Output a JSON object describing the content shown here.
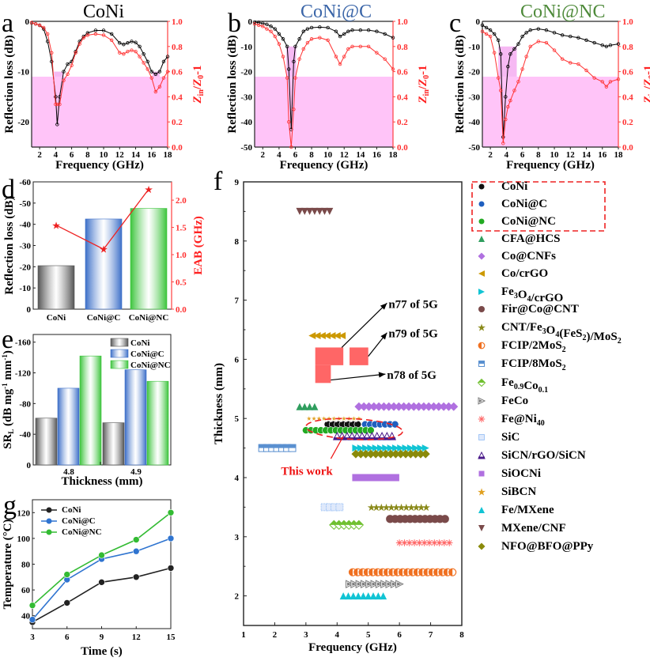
{
  "chart_data": [
    {
      "panel": "a",
      "type": "line",
      "title": "CoNi",
      "title_color": "#000000",
      "xlabel": "Frequency (GHz)",
      "ylabel": "Reflection loss (dB)",
      "y2label": "Zin/Z0-1",
      "xlim": [
        1,
        18
      ],
      "ylim": [
        -25,
        0
      ],
      "y2lim": [
        0,
        1.0
      ],
      "xticks": [
        "2",
        "4",
        "6",
        "8",
        "10",
        "12",
        "14",
        "16",
        "18"
      ],
      "yticks": [
        "0",
        "-10",
        "-20"
      ],
      "y2ticks": [
        "1.0",
        "0.8",
        "0.6",
        "0.4",
        "0.2",
        "0.0"
      ],
      "shade_y2_below": 0.56,
      "eab_bands": [
        [
          3.8,
          4.9
        ],
        [
          16.1,
          17.0
        ]
      ],
      "series": [
        {
          "name": "RL",
          "color": "#000000",
          "x": [
            1,
            1.5,
            2,
            2.5,
            3,
            3.5,
            4,
            4.2,
            4.5,
            5,
            5.5,
            6,
            6.5,
            7,
            7.5,
            8,
            9,
            10,
            11,
            12,
            12.5,
            13,
            13.5,
            14,
            14.5,
            15,
            15.5,
            16,
            16.5,
            17,
            17.5,
            18
          ],
          "y": [
            -0.3,
            -0.5,
            -0.8,
            -1.5,
            -4,
            -8,
            -15,
            -20.5,
            -15,
            -10,
            -8.5,
            -8,
            -6,
            -4,
            -3,
            -2.3,
            -1.8,
            -1.8,
            -2.5,
            -4.3,
            -4.6,
            -4.3,
            -4.0,
            -4.2,
            -5.0,
            -6.5,
            -8,
            -10,
            -10.5,
            -10,
            -8,
            -7
          ]
        },
        {
          "name": "|Zin/Z0-1|",
          "color": "#ff3333",
          "axis": "right",
          "x": [
            1,
            1.5,
            2,
            2.5,
            3,
            3.5,
            4,
            4.2,
            4.5,
            5,
            5.5,
            6,
            6.5,
            7,
            7.5,
            8,
            9,
            10,
            11,
            12,
            12.5,
            13,
            13.5,
            14,
            14.5,
            15,
            15.5,
            16,
            16.5,
            17,
            17.5,
            18
          ],
          "y": [
            0.99,
            0.98,
            0.97,
            0.95,
            0.9,
            0.75,
            0.34,
            0.34,
            0.34,
            0.53,
            0.58,
            0.65,
            0.75,
            0.82,
            0.87,
            0.89,
            0.9,
            0.89,
            0.85,
            0.75,
            0.74,
            0.76,
            0.77,
            0.76,
            0.72,
            0.67,
            0.62,
            0.55,
            0.44,
            0.48,
            0.55,
            0.6
          ]
        }
      ]
    },
    {
      "panel": "b",
      "type": "line",
      "title": "CoNi@C",
      "title_color": "#3a65a8",
      "xlabel": "Frequency (GHz)",
      "ylabel": "Reflection loss (dB)",
      "y2label": "Zin/Z0-1",
      "xlim": [
        1,
        18
      ],
      "ylim": [
        -50,
        0
      ],
      "y2lim": [
        0,
        1.0
      ],
      "xticks": [
        "2",
        "4",
        "6",
        "8",
        "10",
        "12",
        "14",
        "16",
        "18"
      ],
      "yticks": [
        "0",
        "-10",
        "-20",
        "-30",
        "-40",
        "-50"
      ],
      "y2ticks": [
        "1.0",
        "0.8",
        "0.6",
        "0.4",
        "0.2",
        "0.0"
      ],
      "shade_y2_below": 0.56,
      "eab_bands": [
        [
          4.9,
          6.1
        ]
      ],
      "series": [
        {
          "name": "RL",
          "color": "#000000",
          "x": [
            1,
            1.5,
            2,
            2.5,
            3,
            3.5,
            4,
            4.5,
            5,
            5.2,
            5.5,
            5.8,
            6,
            6.5,
            7,
            7.5,
            8,
            9,
            10,
            11,
            11.5,
            12,
            12.5,
            13,
            14,
            15,
            16,
            17,
            18
          ],
          "y": [
            -0.3,
            -0.5,
            -0.8,
            -1.2,
            -2,
            -3,
            -5,
            -7,
            -10,
            -19,
            -43,
            -16,
            -10,
            -7,
            -4,
            -3,
            -2.5,
            -2.3,
            -2.5,
            -4,
            -6,
            -5,
            -4,
            -3.5,
            -3.5,
            -3.5,
            -4,
            -5,
            -6.5
          ]
        },
        {
          "name": "|Zin/Z0-1|",
          "color": "#ff3333",
          "axis": "right",
          "x": [
            1,
            1.5,
            2,
            2.5,
            3,
            3.5,
            4,
            4.5,
            5,
            5.2,
            5.5,
            5.8,
            6,
            6.5,
            7,
            7.5,
            8,
            9,
            10,
            11,
            11.5,
            12,
            12.5,
            13,
            14,
            15,
            16,
            17,
            18
          ],
          "y": [
            0.98,
            0.97,
            0.96,
            0.94,
            0.92,
            0.88,
            0.82,
            0.72,
            0.55,
            0.2,
            0.0,
            0.3,
            0.55,
            0.7,
            0.78,
            0.83,
            0.86,
            0.87,
            0.85,
            0.72,
            0.66,
            0.72,
            0.78,
            0.8,
            0.8,
            0.8,
            0.75,
            0.7,
            0.62
          ]
        }
      ]
    },
    {
      "panel": "c",
      "type": "line",
      "title": "CoNi@NC",
      "title_color": "#4e8a3a",
      "xlabel": "Frequency (GHz)",
      "ylabel": "Reflection loss (dB)",
      "y2label": "Zin/Z0-1",
      "xlim": [
        1,
        18
      ],
      "ylim": [
        -50,
        0
      ],
      "y2lim": [
        0,
        1.0
      ],
      "xticks": [
        "2",
        "4",
        "6",
        "8",
        "10",
        "12",
        "14",
        "16",
        "18"
      ],
      "yticks": [
        "0",
        "-10",
        "-20",
        "-30",
        "-40",
        "-50"
      ],
      "y2ticks": [
        "1.0",
        "0.8",
        "0.6",
        "0.4",
        "0.2",
        "0.0"
      ],
      "shade_y2_below": 0.56,
      "eab_bands": [
        [
          3.0,
          5.3
        ]
      ],
      "series": [
        {
          "name": "RL",
          "color": "#000000",
          "x": [
            1,
            1.5,
            2,
            2.5,
            3,
            3.3,
            3.6,
            3.9,
            4.2,
            4.5,
            5,
            5.5,
            6,
            6.5,
            7,
            8,
            9,
            10,
            11,
            12,
            13,
            14,
            15,
            16,
            16.5,
            17,
            18
          ],
          "y": [
            -1.5,
            -2.5,
            -3.5,
            -5,
            -7.5,
            -13,
            -46,
            -30,
            -18,
            -13,
            -11,
            -9,
            -6,
            -4.5,
            -3.5,
            -3,
            -3.5,
            -4.5,
            -5.5,
            -6,
            -6.5,
            -7.5,
            -8.5,
            -9.5,
            -10,
            -9.5,
            -9
          ]
        },
        {
          "name": "|Zin/Z0-1|",
          "color": "#ff3333",
          "axis": "right",
          "x": [
            1,
            1.5,
            2,
            2.5,
            3,
            3.3,
            3.6,
            3.9,
            4.2,
            4.5,
            5,
            5.5,
            6,
            6.5,
            7,
            8,
            9,
            10,
            11,
            12,
            13,
            14,
            15,
            16,
            16.5,
            17,
            18
          ],
          "y": [
            0.92,
            0.9,
            0.88,
            0.75,
            0.55,
            0.45,
            0.03,
            0.22,
            0.32,
            0.37,
            0.45,
            0.52,
            0.62,
            0.72,
            0.8,
            0.84,
            0.83,
            0.77,
            0.7,
            0.67,
            0.66,
            0.61,
            0.55,
            0.52,
            0.48,
            0.52,
            0.54
          ]
        }
      ]
    },
    {
      "panel": "d",
      "type": "bar",
      "categories": [
        "CoNi",
        "CoNi@C",
        "CoNi@NC"
      ],
      "values": [
        -20.5,
        -42.5,
        -47.5
      ],
      "bar_colors": [
        "#555555",
        "#3c6fc8",
        "#3cc43c"
      ],
      "ylabel": "Reflection loss (dB)",
      "y2label": "EAB (GHz)",
      "ylim": [
        0,
        -60
      ],
      "y2lim": [
        0,
        2.3
      ],
      "yticks": [
        "0",
        "-10",
        "-20",
        "-30",
        "-40",
        "-50",
        "-60"
      ],
      "y2ticks": [
        "0.0",
        "0.5",
        "1.0",
        "1.5",
        "2.0"
      ],
      "line_series": {
        "name": "EAB",
        "color": "#ee2222",
        "values": [
          1.54,
          1.1,
          2.2
        ]
      }
    },
    {
      "panel": "e",
      "type": "bar",
      "categories": [
        "4.8",
        "4.9"
      ],
      "series": [
        {
          "name": "CoNi",
          "color": "#555555",
          "values": [
            -61,
            -55
          ]
        },
        {
          "name": "CoNi@C",
          "color": "#3c6fc8",
          "values": [
            -100,
            -124
          ]
        },
        {
          "name": "CoNi@NC",
          "color": "#3cc43c",
          "values": [
            -142,
            -109
          ]
        }
      ],
      "xlabel": "Thickness (mm)",
      "ylabel": "SRL (dB mg-1 mm-1)",
      "ylim": [
        0,
        -170
      ],
      "yticks": [
        "0",
        "-40",
        "-80",
        "-120",
        "-160"
      ],
      "legend": "top-right"
    },
    {
      "panel": "f",
      "type": "scatter",
      "xlabel": "Frequency (GHz)",
      "ylabel": "Thickness (mm)",
      "xlim": [
        1,
        8
      ],
      "ylim": [
        1.5,
        9
      ],
      "xticks": [
        "1",
        "2",
        "3",
        "4",
        "5",
        "6",
        "7",
        "8"
      ],
      "yticks": [
        "2",
        "3",
        "4",
        "5",
        "6",
        "7",
        "8",
        "9"
      ],
      "series": [
        {
          "name": "CoNi",
          "color": "#111111",
          "marker": "circle",
          "thickness": 4.9,
          "freq_range": [
            3.7,
            4.8
          ]
        },
        {
          "name": "CoNi@C",
          "color": "#1f5fbf",
          "marker": "circle",
          "thickness": 4.9,
          "freq_range": [
            4.9,
            6.0
          ]
        },
        {
          "name": "CoNi@NC",
          "color": "#22aa22",
          "marker": "circle",
          "thickness": 4.8,
          "freq_range": [
            3.0,
            5.2
          ]
        },
        {
          "name": "CFA@HCS",
          "color": "#2f9e5e",
          "marker": "triangle-up",
          "thickness": 5.2,
          "freq_range": [
            2.8,
            3.3
          ]
        },
        {
          "name": "Co@CNFs",
          "color": "#b070e0",
          "marker": "diamond",
          "thickness": 5.2,
          "freq_range": [
            4.7,
            7.8
          ]
        },
        {
          "name": "Co/crGO",
          "color": "#cc9900",
          "marker": "triangle-left",
          "thickness": 6.4,
          "freq_range": [
            3.2,
            4.2
          ]
        },
        {
          "name": "Fe3O4/crGO",
          "color": "#11c4d4",
          "marker": "triangle-right",
          "thickness": 4.5,
          "freq_range": [
            4.6,
            6.9
          ]
        },
        {
          "name": "Fir@Co@CNT",
          "color": "#7a4a4a",
          "marker": "hexagon",
          "thickness": 3.3,
          "freq_range": [
            5.7,
            7.6
          ]
        },
        {
          "name": "CNT/Fe3O4(FeS2)/MoS2",
          "color": "#8a8a1a",
          "marker": "star",
          "thickness": 3.5,
          "freq_range": [
            5.1,
            6.9
          ]
        },
        {
          "name": "FCIP/2MoS2",
          "color": "#f07020",
          "marker": "half-circle",
          "thickness": 2.4,
          "freq_range": [
            4.5,
            7.8
          ]
        },
        {
          "name": "FCIP/8MoS2",
          "color": "#5a90d0",
          "marker": "half-square",
          "thickness": 4.5,
          "freq_range": [
            1.6,
            2.6
          ]
        },
        {
          "name": "Fe0.9Co0.1",
          "color": "#70c030",
          "marker": "half-diamond",
          "thickness": 3.2,
          "freq_range": [
            3.9,
            4.7
          ]
        },
        {
          "name": "FeCo",
          "color": "#777777",
          "marker": "half-triangle-right",
          "thickness": 2.2,
          "freq_range": [
            4.4,
            6.0
          ]
        },
        {
          "name": "Fe@Ni40",
          "color": "#ff6666",
          "marker": "asterisk",
          "thickness": 2.9,
          "freq_range": [
            6.0,
            7.7
          ]
        },
        {
          "name": "SiC",
          "color": "#5a9aef",
          "marker": "crosshatch",
          "thickness": 3.5,
          "freq_range": [
            3.6,
            4.2
          ]
        },
        {
          "name": "SiCN/rGO/SiCN",
          "color": "#4a1a8a",
          "marker": "half-triangle-up",
          "thickness": 4.7,
          "freq_range": [
            4.0,
            5.9
          ]
        },
        {
          "name": "SiOCNi",
          "color": "#b070e0",
          "marker": "square",
          "thickness": 4.0,
          "freq_range": [
            4.6,
            5.9
          ]
        },
        {
          "name": "SiBCN",
          "color": "#e0a020",
          "marker": "star-open",
          "thickness": 5.0,
          "freq_range": [
            3.1,
            4.7
          ]
        },
        {
          "name": "Fe/MXene",
          "color": "#11c4d4",
          "marker": "triangle-up",
          "thickness": 2.0,
          "freq_range": [
            4.2,
            5.5
          ]
        },
        {
          "name": "MXene/CNF",
          "color": "#7a4a4a",
          "marker": "triangle-down",
          "thickness": 8.5,
          "freq_range": [
            2.8,
            3.8
          ]
        },
        {
          "name": "NFO@BFO@PPy",
          "color": "#8a8a0a",
          "marker": "diamond",
          "thickness": 4.4,
          "freq_range": [
            4.6,
            6.9
          ]
        }
      ],
      "annotations": [
        {
          "text": "n77 of 5G",
          "band_freq": [
            3.3,
            4.2
          ],
          "band_thickness": [
            5.9,
            6.2
          ]
        },
        {
          "text": "n79 of 5G",
          "band_freq": [
            4.4,
            5.0
          ],
          "band_thickness": [
            5.9,
            6.2
          ]
        },
        {
          "text": "n78 of 5G",
          "band_freq": [
            3.3,
            3.8
          ],
          "band_thickness": [
            5.6,
            6.2
          ]
        },
        {
          "text": "This work",
          "color": "#ee1111"
        }
      ],
      "band_color": "#ff6666",
      "highlight_box_color": "#ee2222"
    },
    {
      "panel": "g",
      "type": "line",
      "xlabel": "Time (s)",
      "ylabel": "Temperature (°C)",
      "x": [
        3,
        6,
        9,
        12,
        15
      ],
      "xlim": [
        3,
        15
      ],
      "ylim": [
        30,
        130
      ],
      "xticks": [
        "3",
        "6",
        "9",
        "12",
        "15"
      ],
      "yticks": [
        "40",
        "60",
        "80",
        "100",
        "120"
      ],
      "series": [
        {
          "name": "CoNi",
          "color": "#222222",
          "values": [
            35,
            50,
            66,
            70,
            77
          ]
        },
        {
          "name": "CoNi@C",
          "color": "#2f74d0",
          "values": [
            37,
            68,
            84,
            90,
            100
          ]
        },
        {
          "name": "CoNi@NC",
          "color": "#33bb33",
          "values": [
            48,
            72,
            87,
            99,
            120
          ]
        }
      ],
      "legend": "top-left"
    }
  ],
  "labels": {
    "panel_a": "a",
    "panel_b": "b",
    "panel_c": "c",
    "panel_d": "d",
    "panel_e": "e",
    "panel_f": "f",
    "panel_g": "g"
  }
}
